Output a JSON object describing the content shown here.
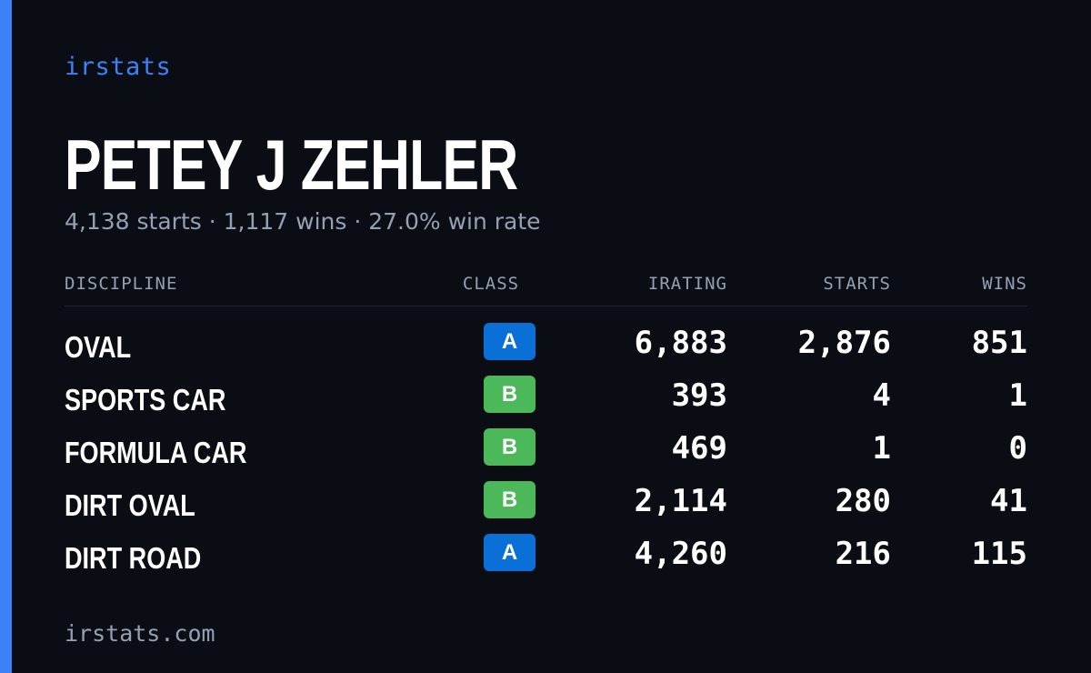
{
  "brand": "irstats",
  "driver": {
    "name": "PETEY J ZEHLER",
    "summary": "4,138 starts · 1,117 wins · 27.0% win rate"
  },
  "table": {
    "headers": {
      "discipline": "DISCIPLINE",
      "class": "CLASS",
      "irating": "IRATING",
      "starts": "STARTS",
      "wins": "WINS"
    },
    "rows": [
      {
        "discipline": "OVAL",
        "class": "A",
        "irating": "6,883",
        "starts": "2,876",
        "wins": "851"
      },
      {
        "discipline": "SPORTS CAR",
        "class": "B",
        "irating": "393",
        "starts": "4",
        "wins": "1"
      },
      {
        "discipline": "FORMULA CAR",
        "class": "B",
        "irating": "469",
        "starts": "1",
        "wins": "0"
      },
      {
        "discipline": "DIRT OVAL",
        "class": "B",
        "irating": "2,114",
        "starts": "280",
        "wins": "41"
      },
      {
        "discipline": "DIRT ROAD",
        "class": "A",
        "irating": "4,260",
        "starts": "216",
        "wins": "115"
      }
    ]
  },
  "footer": "irstats.com",
  "colors": {
    "background": "#0a0d14",
    "accent": "#3b82f6",
    "muted_text": "#94a0b4",
    "class_a": "#0b6fd8",
    "class_b": "#4bb859"
  }
}
